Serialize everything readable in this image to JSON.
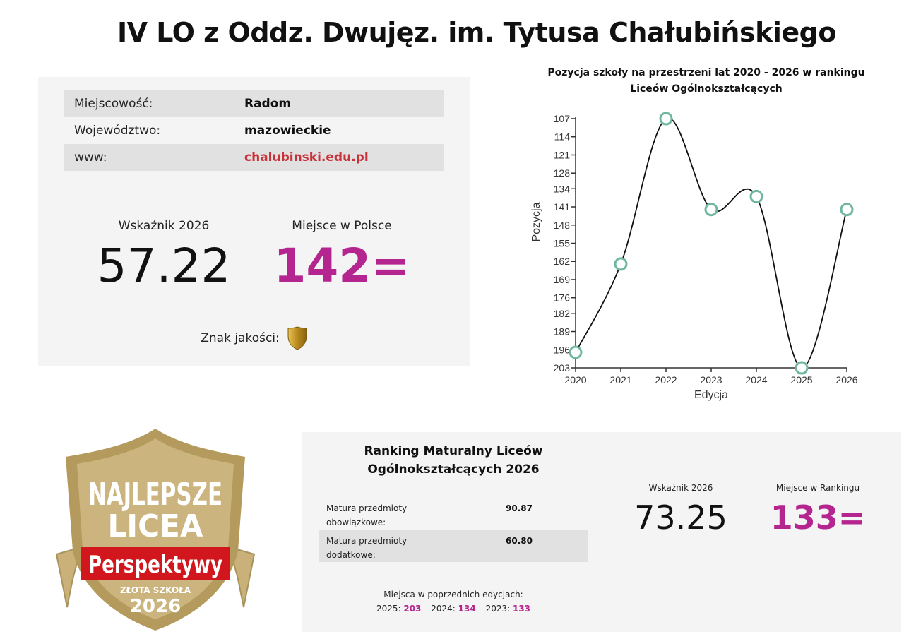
{
  "header": {
    "title": "IV LO z Oddz. Dwujęz. im. Tytusa Chałubińskiego"
  },
  "info": {
    "rows": [
      {
        "label": "Miejscowość:",
        "value": "Radom"
      },
      {
        "label": "Województwo:",
        "value": "mazowieckie"
      },
      {
        "label": "www:",
        "value": "chalubinski.edu.pl"
      }
    ],
    "indicator_label": "Wskaźnik 2026",
    "indicator_value": "57.22",
    "rank_label": "Miejsce w Polsce",
    "rank_value": "142=",
    "quality_label": "Znak jakości:",
    "quality_icon": "gold-shield-icon"
  },
  "chart_data": {
    "type": "line",
    "title": "Pozycja szkoły na przestrzeni lat 2020 - 2026 w rankingu Liceów Ogólnokształcących",
    "title_line1": "Pozycja szkoły na przestrzeni lat 2020 - 2026 w rankingu",
    "title_line2": "Liceów Ogólnokształcących",
    "xlabel": "Edycja",
    "ylabel": "Pozycja",
    "x": [
      "2020",
      "2021",
      "2022",
      "2023",
      "2024",
      "2025",
      "2026"
    ],
    "series": [
      {
        "name": "Pozycja",
        "values": [
          197,
          163,
          107,
          142,
          137,
          203,
          142
        ]
      }
    ],
    "y_ticks": [
      107,
      114,
      121,
      128,
      134,
      141,
      148,
      155,
      162,
      169,
      176,
      182,
      189,
      196,
      203
    ],
    "ylim": [
      203,
      107
    ],
    "y_inverted": true,
    "grid": false,
    "line_color": "#111111",
    "marker_color": "#6fb7a0"
  },
  "badge": {
    "line1": "NAJLEPSZE",
    "line2": "LICEA",
    "brand": "Perspektywy",
    "sub": "ZŁOTA SZKOŁA",
    "year": "2026"
  },
  "ranking": {
    "title_line1": "Ranking Maturalny Liceów",
    "title_line2": "Ogólnokształcących 2026",
    "rows": [
      {
        "label_line1": "Matura przedmioty",
        "label_line2": "obowiązkowe:",
        "value": "90.87"
      },
      {
        "label_line1": "Matura przedmioty",
        "label_line2": "dodatkowe:",
        "value": "60.80"
      }
    ],
    "prev_label": "Miejsca w poprzednich edycjach:",
    "prev": [
      {
        "year": "2025:",
        "place": "203"
      },
      {
        "year": "2024:",
        "place": "134"
      },
      {
        "year": "2023:",
        "place": "133"
      }
    ],
    "indicator_label": "Wskaźnik 2026",
    "indicator_value": "73.25",
    "rank_label": "Miejsce w Rankingu",
    "rank_value": "133="
  }
}
